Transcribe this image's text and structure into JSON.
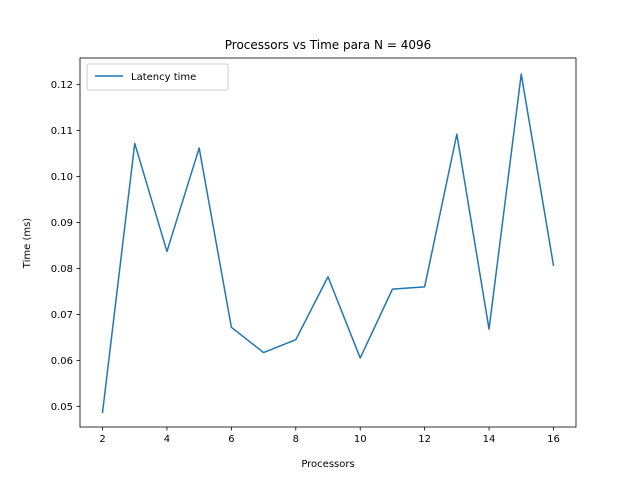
{
  "chart_data": {
    "type": "line",
    "title": "Processors vs Time para N = 4096",
    "xlabel": "Processors",
    "ylabel": "Time (ms)",
    "xlim": [
      1.3,
      16.7
    ],
    "ylim": [
      0.0455,
      0.1258
    ],
    "xticks": [
      2,
      4,
      6,
      8,
      10,
      12,
      14,
      16
    ],
    "xtick_labels": [
      "2",
      "4",
      "6",
      "8",
      "10",
      "12",
      "14",
      "16"
    ],
    "yticks": [
      0.05,
      0.06,
      0.07,
      0.08,
      0.09,
      0.1,
      0.11,
      0.12
    ],
    "ytick_labels": [
      "0.05",
      "0.06",
      "0.07",
      "0.08",
      "0.09",
      "0.10",
      "0.11",
      "0.12"
    ],
    "grid": false,
    "legend_position": "upper-left",
    "series": [
      {
        "name": "Latency time",
        "color": "#1f77b4",
        "x": [
          2,
          3,
          4,
          5,
          6,
          7,
          8,
          9,
          10,
          11,
          12,
          13,
          14,
          15,
          16
        ],
        "y": [
          0.0487,
          0.1072,
          0.0837,
          0.1062,
          0.0672,
          0.0617,
          0.0645,
          0.0782,
          0.0605,
          0.0755,
          0.076,
          0.1092,
          0.0668,
          0.1223,
          0.0807
        ]
      }
    ]
  }
}
